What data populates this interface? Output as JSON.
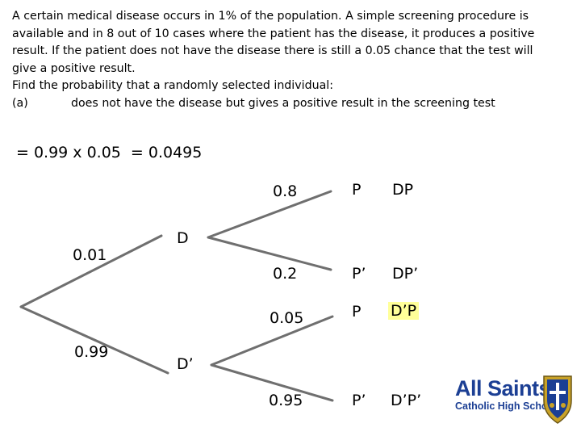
{
  "problem": {
    "line1": "A certain medical disease occurs in 1% of the population. A simple screening procedure is",
    "line2": "available and in 8 out of 10 cases where the patient has the disease, it produces a positive",
    "line3": "result. If the patient does not have the disease there is still a 0.05 chance that the test will",
    "line4": "give a positive result.",
    "line5": "Find the probability that a randomly selected individual:",
    "part_label": "(a)",
    "part_text": "does not have the disease but gives a positive result in the screening test"
  },
  "answer": {
    "lhs": "= 0.99 x 0.05",
    "result": "= 0.0495"
  },
  "tree": {
    "first_branches": {
      "prob_disease": "0.01",
      "prob_no_disease": "0.99",
      "node_disease": "D",
      "node_no_disease": "D’"
    },
    "given_disease": {
      "prob_positive": "0.8",
      "prob_negative": "0.2",
      "outcome_positive": "P",
      "outcome_negative": "P’",
      "joint_positive": "DP",
      "joint_negative": "DP’"
    },
    "given_no_disease": {
      "prob_positive": "0.05",
      "prob_negative": "0.95",
      "outcome_positive": "P",
      "outcome_negative": "P’",
      "joint_positive": "D’P",
      "joint_negative": "D’P’"
    }
  },
  "highlight_color": "#ffff99",
  "logo": {
    "name": "All Saints",
    "subtitle": "Catholic High School",
    "brand_color": "#1c3f94",
    "crest_icon": "school-crest-icon"
  }
}
